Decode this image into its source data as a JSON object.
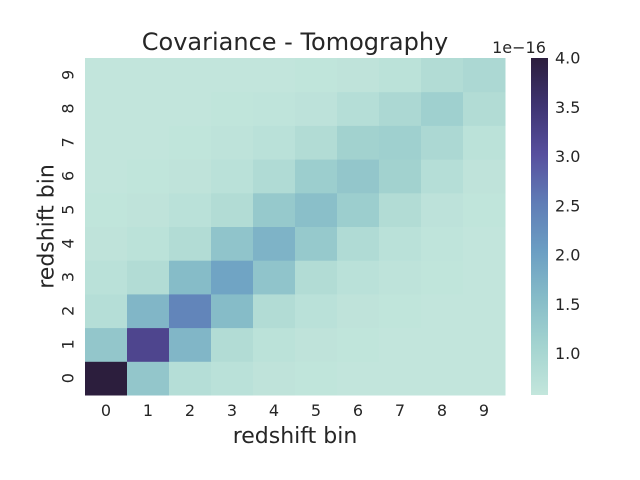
{
  "chart_data": {
    "type": "heatmap",
    "title": "Covariance - Tomography",
    "xlabel": "redshift bin",
    "ylabel": "redshift bin",
    "x_categories": [
      "0",
      "1",
      "2",
      "3",
      "4",
      "5",
      "6",
      "7",
      "8",
      "9"
    ],
    "y_categories": [
      "0",
      "1",
      "2",
      "3",
      "4",
      "5",
      "6",
      "7",
      "8",
      "9"
    ],
    "values": [
      [
        4.0,
        1.35,
        0.8,
        0.72,
        0.65,
        0.62,
        0.6,
        0.6,
        0.6,
        0.6
      ],
      [
        1.35,
        3.2,
        1.65,
        0.85,
        0.7,
        0.65,
        0.62,
        0.6,
        0.6,
        0.6
      ],
      [
        0.8,
        1.65,
        2.4,
        1.55,
        0.85,
        0.72,
        0.65,
        0.62,
        0.6,
        0.6
      ],
      [
        0.72,
        0.85,
        1.55,
        1.95,
        1.4,
        0.85,
        0.72,
        0.66,
        0.62,
        0.6
      ],
      [
        0.65,
        0.7,
        0.85,
        1.4,
        1.7,
        1.3,
        0.88,
        0.72,
        0.64,
        0.6
      ],
      [
        0.62,
        0.65,
        0.72,
        0.85,
        1.3,
        1.5,
        1.2,
        0.85,
        0.68,
        0.62
      ],
      [
        0.6,
        0.62,
        0.65,
        0.72,
        0.88,
        1.2,
        1.35,
        1.1,
        0.8,
        0.65
      ],
      [
        0.6,
        0.6,
        0.62,
        0.66,
        0.72,
        0.85,
        1.1,
        1.15,
        0.95,
        0.7
      ],
      [
        0.6,
        0.6,
        0.6,
        0.62,
        0.64,
        0.68,
        0.8,
        0.95,
        1.15,
        0.85
      ],
      [
        0.6,
        0.6,
        0.6,
        0.6,
        0.6,
        0.62,
        0.65,
        0.7,
        0.85,
        0.95
      ]
    ],
    "colorbar": {
      "min": 0.58,
      "max": 4.0,
      "ticks": [
        "1.0",
        "1.5",
        "2.0",
        "2.5",
        "3.0",
        "3.5",
        "4.0"
      ],
      "tick_values": [
        1.0,
        1.5,
        2.0,
        2.5,
        3.0,
        3.5,
        4.0
      ],
      "scale_label": "1e−16",
      "colormap": [
        "#c3e6dc",
        "#a4d4d0",
        "#86bcc8",
        "#6b9ec3",
        "#5f7cb6",
        "#574f9e",
        "#3e3472",
        "#2c1e3d"
      ]
    },
    "grid": false,
    "legend": "colorbar-right"
  }
}
